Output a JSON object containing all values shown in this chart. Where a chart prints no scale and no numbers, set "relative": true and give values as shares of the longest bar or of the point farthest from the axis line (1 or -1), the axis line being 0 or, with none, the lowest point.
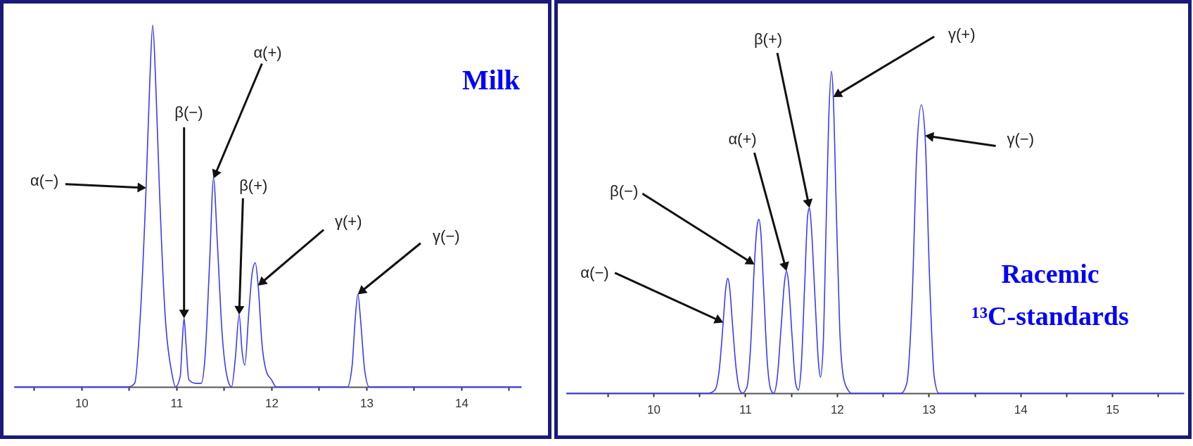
{
  "chart_data": [
    {
      "type": "line",
      "title": "Milk",
      "relative": true,
      "xlim": [
        9.29,
        14.63
      ],
      "xticks": [
        {
          "value": 9.5,
          "label": null
        },
        10,
        {
          "value": 10.5,
          "label": null
        },
        11,
        {
          "value": 11.5,
          "label": null
        },
        12,
        {
          "value": 12.5,
          "label": null
        },
        13,
        {
          "value": 13.5,
          "label": null
        },
        14,
        {
          "value": 14.5,
          "label": null
        }
      ],
      "x": [
        9.29,
        10.5,
        10.56,
        10.62,
        10.68,
        10.72,
        10.75,
        10.78,
        10.82,
        10.88,
        10.95,
        10.99,
        11.04,
        11.06,
        11.08,
        11.1,
        11.13,
        11.2,
        11.26,
        11.3,
        11.35,
        11.39,
        11.43,
        11.48,
        11.54,
        11.58,
        11.62,
        11.66,
        11.69,
        11.72,
        11.76,
        11.8,
        11.83,
        11.86,
        11.9,
        11.95,
        12.0,
        12.05,
        12.8,
        12.85,
        12.88,
        12.91,
        12.94,
        12.98,
        13.03,
        14.63
      ],
      "series": [
        {
          "color": "#3a3aff",
          "values": [
            0,
            0,
            0.01,
            0.2,
            0.55,
            0.85,
            1,
            0.85,
            0.55,
            0.2,
            0.04,
            0,
            0.03,
            0.12,
            0.19,
            0.12,
            0.02,
            0.01,
            0.01,
            0.08,
            0.35,
            0.576,
            0.4,
            0.15,
            0.02,
            0,
            0.08,
            0.2,
            0.1,
            0.06,
            0.2,
            0.32,
            0.343,
            0.28,
            0.12,
            0.04,
            0.02,
            0,
            0,
            0.06,
            0.18,
            0.256,
            0.18,
            0.05,
            0,
            0
          ]
        }
      ],
      "annotations": [
        {
          "text": "α(−)",
          "x": 10.68,
          "y": 0.55
        },
        {
          "text": "β(−)",
          "x": 11.08,
          "y": 0.19
        },
        {
          "text": "α(+)",
          "x": 11.39,
          "y": 0.576
        },
        {
          "text": "β(+)",
          "x": 11.66,
          "y": 0.2
        },
        {
          "text": "γ(+)",
          "x": 11.86,
          "y": 0.28
        },
        {
          "text": "γ(−)",
          "x": 12.91,
          "y": 0.256
        }
      ]
    },
    {
      "type": "line",
      "title": "Racemic\n¹³C-standards",
      "relative": true,
      "xlim": [
        9.05,
        15.78
      ],
      "xticks": [
        {
          "value": 9.5,
          "label": null
        },
        10,
        {
          "value": 10.5,
          "label": null
        },
        11,
        {
          "value": 11.5,
          "label": null
        },
        12,
        {
          "value": 12.5,
          "label": null
        },
        13,
        {
          "value": 13.5,
          "label": null
        },
        14,
        {
          "value": 14.5,
          "label": null
        },
        15,
        {
          "value": 15.5,
          "label": null
        }
      ],
      "x": [
        9.05,
        10.6,
        10.67,
        10.72,
        10.76,
        10.79,
        10.81,
        10.83,
        10.86,
        10.9,
        10.94,
        10.97,
        11.02,
        11.06,
        11.1,
        11.13,
        11.15,
        11.17,
        11.2,
        11.24,
        11.28,
        11.31,
        11.35,
        11.39,
        11.43,
        11.45,
        11.47,
        11.51,
        11.55,
        11.58,
        11.61,
        11.65,
        11.68,
        11.7,
        11.72,
        11.76,
        11.8,
        11.82,
        11.85,
        11.88,
        11.91,
        11.94,
        11.96,
        11.99,
        12.03,
        12.07,
        12.12,
        12.16,
        12.7,
        12.76,
        12.82,
        12.87,
        12.92,
        12.96,
        13.01,
        13.06,
        13.11,
        15.78
      ],
      "series": [
        {
          "color": "#3a3aff",
          "values": [
            0,
            0,
            0.01,
            0.08,
            0.22,
            0.33,
            0.357,
            0.33,
            0.22,
            0.08,
            0.01,
            0,
            0.02,
            0.15,
            0.4,
            0.52,
            0.54,
            0.5,
            0.33,
            0.1,
            0.01,
            0,
            0.05,
            0.2,
            0.35,
            0.38,
            0.35,
            0.18,
            0.03,
            0.01,
            0.08,
            0.35,
            0.55,
            0.576,
            0.52,
            0.3,
            0.09,
            0.05,
            0.15,
            0.5,
            0.85,
            1,
            0.92,
            0.6,
            0.2,
            0.05,
            0.01,
            0,
            0,
            0.03,
            0.3,
            0.75,
            0.896,
            0.8,
            0.35,
            0.05,
            0,
            0
          ]
        }
      ],
      "annotations": [
        {
          "text": "α(−)",
          "x": 10.76,
          "y": 0.22
        },
        {
          "text": "β(−)",
          "x": 11.1,
          "y": 0.4
        },
        {
          "text": "α(+)",
          "x": 11.45,
          "y": 0.38
        },
        {
          "text": "β(+)",
          "x": 11.7,
          "y": 0.576
        },
        {
          "text": "γ(+)",
          "x": 11.96,
          "y": 0.92
        },
        {
          "text": "γ(−)",
          "x": 12.96,
          "y": 0.8
        }
      ]
    }
  ]
}
